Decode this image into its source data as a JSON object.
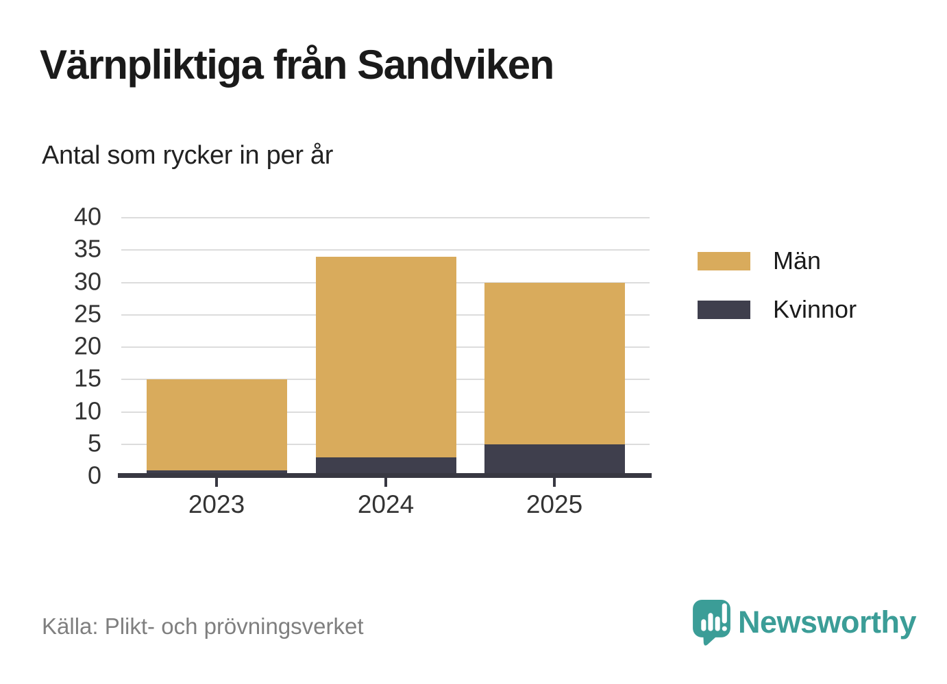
{
  "title": "Värnpliktiga från Sandviken",
  "subtitle": "Antal som rycker in per år",
  "source": "Källa: Plikt- och prövningsverket",
  "logo": {
    "text": "Newsworthy",
    "color": "#3b9d97",
    "icon": "newsworthy-speech-bubble-bar-chart-icon"
  },
  "chart_data": {
    "type": "bar",
    "stacked": true,
    "title": "Värnpliktiga från Sandviken",
    "subtitle": "Antal som rycker in per år",
    "xlabel": "",
    "ylabel": "",
    "categories": [
      "2023",
      "2024",
      "2025"
    ],
    "series": [
      {
        "name": "Män",
        "color": "#d9ab5c",
        "values": [
          14,
          31,
          25
        ]
      },
      {
        "name": "Kvinnor",
        "color": "#3f3f4d",
        "values": [
          1,
          3,
          5
        ]
      }
    ],
    "stack_order_bottom_to_top": [
      "Kvinnor",
      "Män"
    ],
    "totals": [
      15,
      34,
      30
    ],
    "ylim": [
      0,
      40
    ],
    "yticks": [
      0,
      5,
      10,
      15,
      20,
      25,
      30,
      35,
      40
    ],
    "grid": true,
    "legend_position": "right",
    "axis_color": "#383842",
    "gridline_color": "#dcdcdc",
    "tick_label_color": "#333333"
  }
}
